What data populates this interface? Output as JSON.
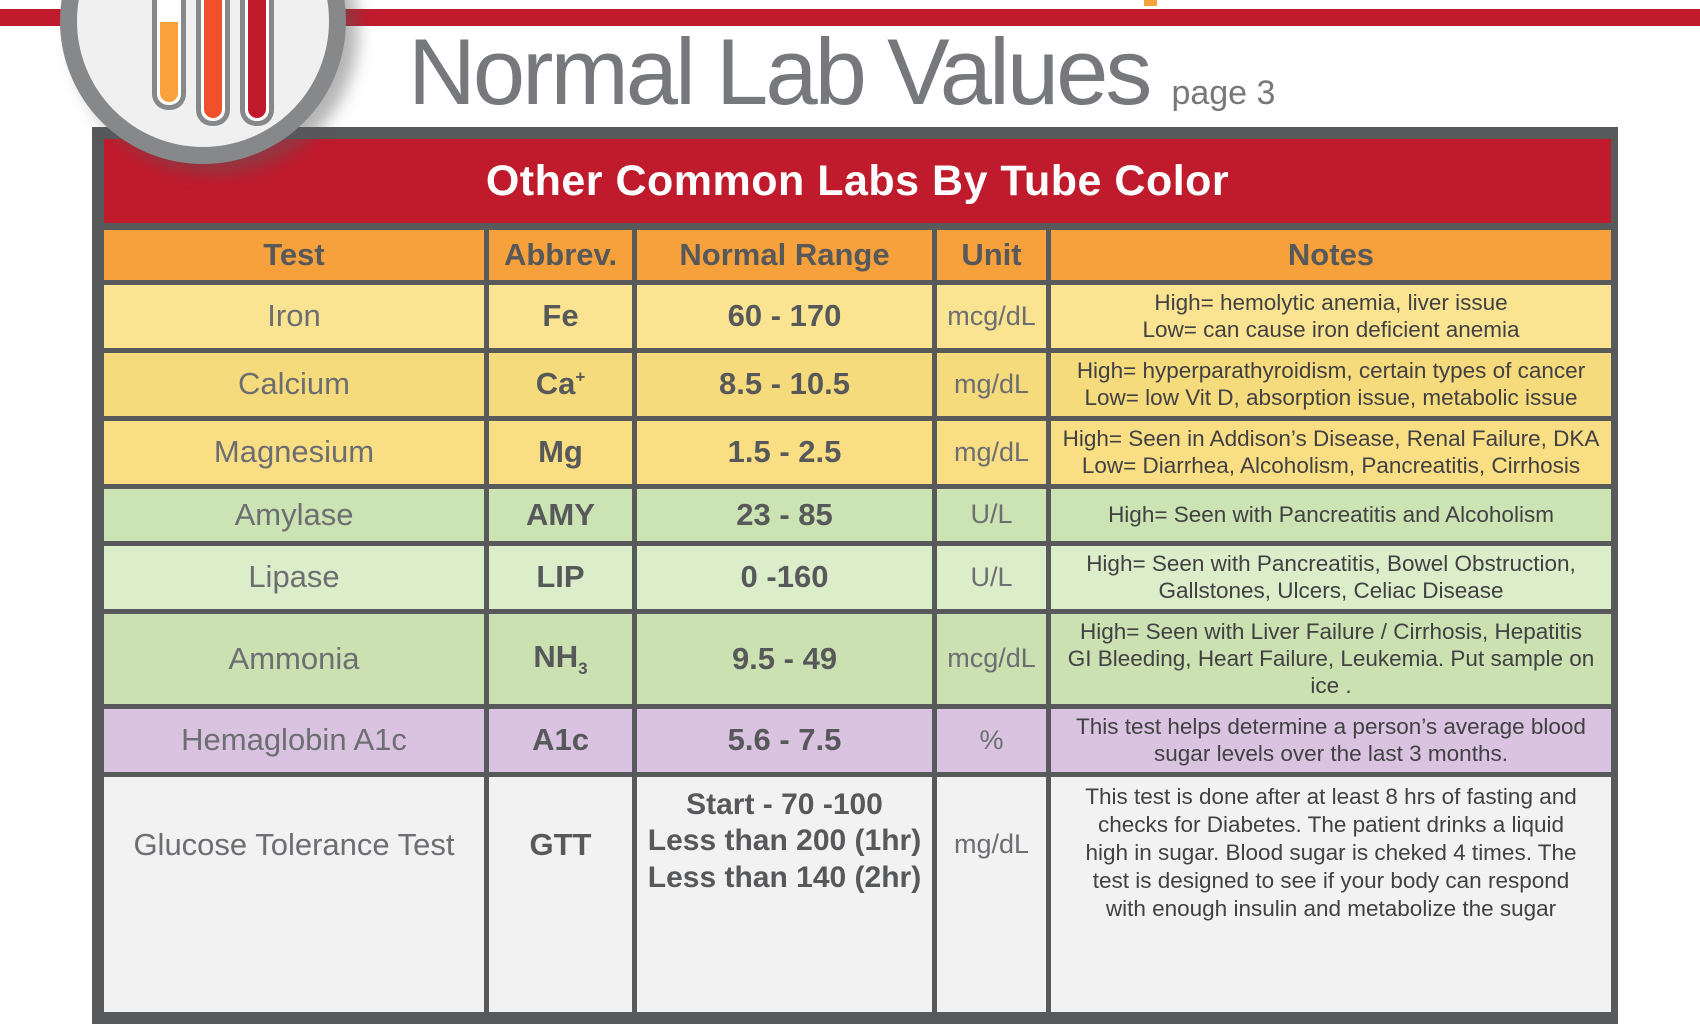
{
  "header": {
    "title": "Normal Lab Values",
    "page_label": "page 3"
  },
  "banner": {
    "title": "Other Common Labs By Tube Color"
  },
  "table": {
    "headers": [
      "Test",
      "Abbrev.",
      "Normal Range",
      "Unit",
      "Notes"
    ],
    "rows": [
      {
        "test": "Iron",
        "abbrev": "Fe",
        "range_lines": [
          "60 - 170"
        ],
        "unit": "mcg/dL",
        "note_lines": [
          "High= hemolytic anemia, liver issue",
          "Low= can cause iron deficient anemia"
        ],
        "bg": "#FAE491"
      },
      {
        "test": "Calcium",
        "abbrev": "Ca",
        "abbrev_sup": "+",
        "range_lines": [
          "8.5 - 10.5"
        ],
        "unit": "mg/dL",
        "note_lines": [
          "High= hyperparathyroidism, certain types of cancer",
          "Low= low Vit D, absorption issue, metabolic issue"
        ],
        "bg": "#F6DB7C"
      },
      {
        "test": "Magnesium",
        "abbrev": "Mg",
        "range_lines": [
          "1.5 - 2.5"
        ],
        "unit": "mg/dL",
        "note_lines": [
          "High= Seen in Addison’s Disease, Renal Failure, DKA",
          "Low= Diarrhea, Alcoholism, Pancreatitis, Cirrhosis"
        ],
        "bg": "#F9DE84"
      },
      {
        "test": "Amylase",
        "abbrev": "AMY",
        "range_lines": [
          "23 - 85"
        ],
        "unit": "U/L",
        "note_lines": [
          "High= Seen with Pancreatitis and Alcoholism"
        ],
        "bg": "#CCE3B4"
      },
      {
        "test": "Lipase",
        "abbrev": "LIP",
        "range_lines": [
          "0 -160"
        ],
        "unit": "U/L",
        "note_lines": [
          "High= Seen with Pancreatitis, Bowel Obstruction,",
          "Gallstones, Ulcers, Celiac Disease"
        ],
        "bg": "#DCEDCA"
      },
      {
        "test": "Ammonia",
        "abbrev": "NH",
        "abbrev_sub": "3",
        "range_lines": [
          "9.5 - 49"
        ],
        "unit": "mcg/dL",
        "note_lines": [
          "High= Seen with Liver Failure / Cirrhosis, Hepatitis",
          "GI Bleeding, Heart Failure, Leukemia. Put sample on ice ."
        ],
        "bg": "#CBE1B1"
      },
      {
        "test": "Hemaglobin A1c",
        "abbrev": "A1c",
        "range_lines": [
          "5.6 - 7.5"
        ],
        "unit": "%",
        "note_lines": [
          "This test helps determine a person’s average blood",
          "sugar levels over the last 3 months."
        ],
        "bg": "#D9C3E1"
      },
      {
        "test": "Glucose Tolerance Test",
        "abbrev": "GTT",
        "range_lines": [
          "Start - 70 -100",
          "Less than 200 (1hr)",
          "Less than 140 (2hr)"
        ],
        "unit": "mg/dL",
        "note_lines": [
          "This test is done after at least 8 hrs of fasting and",
          "checks for Diabetes. The patient drinks a liquid",
          "high in sugar. Blood sugar is cheked 4 times. The",
          "test is designed to see if your body can respond",
          "with enough insulin and metabolize the sugar"
        ],
        "bg": "#F2F2F2"
      }
    ]
  },
  "colors": {
    "brand_red": "#C01B2D",
    "brand_orange": "#F6A13C",
    "tube_orange": "#F9A13A",
    "tube_orange_red": "#F1512A",
    "tube_red": "#C01B2D",
    "border_gray": "#58595B",
    "title_gray": "#77787B",
    "banner_text": "#FFFFFF"
  }
}
